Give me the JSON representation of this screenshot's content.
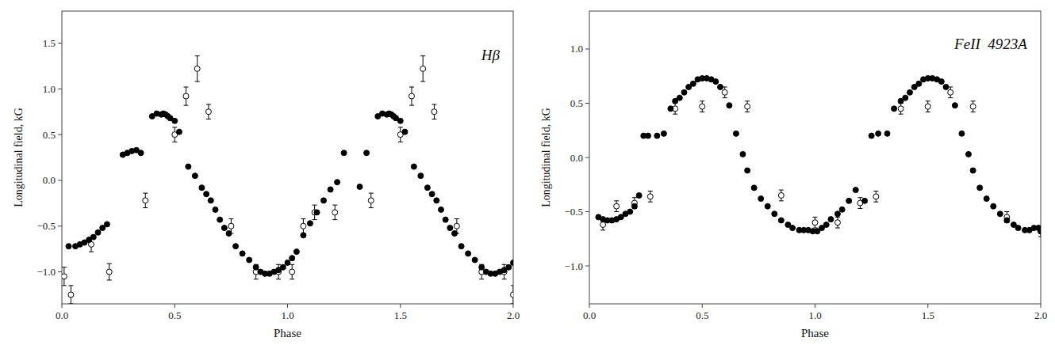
{
  "chart_data": [
    {
      "type": "scatter",
      "annotations": [
        "Hβ"
      ],
      "x_label": "Phase",
      "y_label": "Longitudinal field, kG",
      "xlim": [
        0,
        2
      ],
      "ylim": [
        -1.35,
        1.85
      ],
      "xticks": [
        {
          "value": 0,
          "label": "0.0"
        },
        {
          "value": 0.5,
          "label": "0.5"
        },
        {
          "value": 1,
          "label": "1.0"
        },
        {
          "value": 1.5,
          "label": "1.5"
        },
        {
          "value": 2,
          "label": "2.0"
        }
      ],
      "yticks": [
        {
          "value": -1,
          "label": "−1.0"
        },
        {
          "value": -0.5,
          "label": "−0.5"
        },
        {
          "value": 0,
          "label": "0.0"
        },
        {
          "value": 0.5,
          "label": "0.5"
        },
        {
          "value": 1,
          "label": "1.0"
        },
        {
          "value": 1.5,
          "label": "1.5"
        }
      ],
      "grid": false,
      "series": [
        {
          "marker": "circle",
          "color": "#000000",
          "x": [
            0.03,
            0.06,
            0.08,
            0.1,
            0.12,
            0.14,
            0.16,
            0.18,
            0.2,
            0.27,
            0.29,
            0.31,
            0.33,
            0.35,
            0.4,
            0.42,
            0.44,
            0.45,
            0.46,
            0.47,
            0.48,
            0.5,
            0.52,
            0.56,
            0.59,
            0.62,
            0.64,
            0.66,
            0.68,
            0.7,
            0.72,
            0.74,
            0.77,
            0.8,
            0.83,
            0.86,
            0.88,
            0.9,
            0.92,
            0.94,
            0.96,
            0.98,
            1.0,
            1.02,
            1.04,
            1.07,
            1.1,
            1.13,
            1.16,
            1.19,
            1.22,
            1.25,
            1.32,
            1.35,
            1.4,
            1.42,
            1.44,
            1.45,
            1.46,
            1.47,
            1.48,
            1.5,
            1.52,
            1.56,
            1.59,
            1.62,
            1.64,
            1.66,
            1.68,
            1.7,
            1.72,
            1.74,
            1.77,
            1.8,
            1.83,
            1.86,
            1.88,
            1.9,
            1.92,
            1.94,
            1.96,
            1.98,
            2.0
          ],
          "values": [
            -0.72,
            -0.72,
            -0.7,
            -0.68,
            -0.65,
            -0.62,
            -0.57,
            -0.52,
            -0.48,
            0.28,
            0.3,
            0.32,
            0.33,
            0.3,
            0.7,
            0.73,
            0.72,
            0.73,
            0.72,
            0.7,
            0.68,
            0.65,
            0.53,
            0.15,
            0.05,
            -0.08,
            -0.15,
            -0.22,
            -0.32,
            -0.43,
            -0.52,
            -0.58,
            -0.72,
            -0.8,
            -0.87,
            -0.95,
            -1.0,
            -1.02,
            -1.02,
            -1.0,
            -0.98,
            -0.95,
            -0.9,
            -0.85,
            -0.78,
            -0.6,
            -0.47,
            -0.35,
            -0.22,
            -0.1,
            -0.02,
            0.3,
            -0.07,
            0.3,
            0.7,
            0.73,
            0.72,
            0.73,
            0.72,
            0.7,
            0.68,
            0.65,
            0.53,
            0.15,
            0.05,
            -0.08,
            -0.15,
            -0.22,
            -0.32,
            -0.43,
            -0.52,
            -0.58,
            -0.72,
            -0.8,
            -0.87,
            -0.95,
            -1.0,
            -1.02,
            -1.02,
            -1.0,
            -0.98,
            -0.95,
            -0.9
          ]
        },
        {
          "marker": "circle-open",
          "color": "#000000",
          "x": [
            0.01,
            0.04,
            0.13,
            0.21,
            0.37,
            0.5,
            0.55,
            0.6,
            0.65,
            0.75,
            0.86,
            0.96,
            1.02,
            1.07,
            1.12,
            1.21,
            1.37,
            1.5,
            1.55,
            1.6,
            1.65,
            1.75,
            1.86,
            1.96,
            2.0
          ],
          "values": [
            -1.05,
            -1.25,
            -0.7,
            -1.0,
            -0.22,
            0.5,
            0.92,
            1.22,
            0.75,
            -0.5,
            -1.0,
            -1.0,
            -1.0,
            -0.5,
            -0.35,
            -0.35,
            -0.22,
            0.5,
            0.92,
            1.22,
            0.75,
            -0.5,
            -1.0,
            -1.0,
            -1.25
          ],
          "errors": [
            0.1,
            0.1,
            0.08,
            0.09,
            0.08,
            0.08,
            0.1,
            0.14,
            0.08,
            0.08,
            0.08,
            0.08,
            0.08,
            0.08,
            0.08,
            0.08,
            0.08,
            0.08,
            0.1,
            0.14,
            0.08,
            0.08,
            0.08,
            0.08,
            0.1
          ]
        }
      ]
    },
    {
      "type": "scatter",
      "annotations": [
        "FeII  4923A"
      ],
      "x_label": "Phase",
      "y_label": "Longitudinal field, kG",
      "xlim": [
        0,
        2
      ],
      "ylim": [
        -1.35,
        1.35
      ],
      "xticks": [
        {
          "value": 0,
          "label": "0.0"
        },
        {
          "value": 0.5,
          "label": "0.5"
        },
        {
          "value": 1,
          "label": "1.0"
        },
        {
          "value": 1.5,
          "label": "1.5"
        },
        {
          "value": 2,
          "label": "2.0"
        }
      ],
      "yticks": [
        {
          "value": -1,
          "label": "−1.0"
        },
        {
          "value": -0.5,
          "label": "−0.5"
        },
        {
          "value": 0,
          "label": "0.0"
        },
        {
          "value": 0.5,
          "label": "0.5"
        },
        {
          "value": 1,
          "label": "1.0"
        }
      ],
      "grid": false,
      "series": [
        {
          "marker": "circle",
          "color": "#000000",
          "x": [
            0.04,
            0.06,
            0.08,
            0.1,
            0.12,
            0.14,
            0.16,
            0.18,
            0.2,
            0.22,
            0.24,
            0.26,
            0.3,
            0.33,
            0.36,
            0.38,
            0.4,
            0.42,
            0.44,
            0.46,
            0.48,
            0.5,
            0.52,
            0.54,
            0.56,
            0.58,
            0.62,
            0.65,
            0.68,
            0.7,
            0.73,
            0.76,
            0.79,
            0.82,
            0.85,
            0.88,
            0.9,
            0.93,
            0.95,
            0.97,
            0.99,
            1.01,
            1.03,
            1.05,
            1.07,
            1.1,
            1.12,
            1.15,
            1.18,
            1.22,
            1.25,
            1.28,
            1.32,
            1.35,
            1.38,
            1.4,
            1.42,
            1.44,
            1.46,
            1.48,
            1.5,
            1.52,
            1.54,
            1.56,
            1.58,
            1.62,
            1.65,
            1.68,
            1.7,
            1.73,
            1.76,
            1.79,
            1.82,
            1.85,
            1.88,
            1.9,
            1.93,
            1.95,
            1.97,
            1.99,
            2.0
          ],
          "values": [
            -0.55,
            -0.57,
            -0.58,
            -0.58,
            -0.57,
            -0.55,
            -0.52,
            -0.5,
            -0.45,
            -0.35,
            0.2,
            0.2,
            0.2,
            0.22,
            0.45,
            0.52,
            0.55,
            0.6,
            0.65,
            0.68,
            0.72,
            0.73,
            0.73,
            0.72,
            0.7,
            0.65,
            0.48,
            0.22,
            0.03,
            -0.12,
            -0.28,
            -0.38,
            -0.45,
            -0.52,
            -0.58,
            -0.62,
            -0.65,
            -0.67,
            -0.67,
            -0.67,
            -0.68,
            -0.68,
            -0.65,
            -0.62,
            -0.57,
            -0.52,
            -0.48,
            -0.4,
            -0.3,
            -0.4,
            0.2,
            0.22,
            0.22,
            0.45,
            0.52,
            0.55,
            0.6,
            0.65,
            0.68,
            0.72,
            0.73,
            0.73,
            0.72,
            0.7,
            0.65,
            0.48,
            0.22,
            0.03,
            -0.12,
            -0.28,
            -0.38,
            -0.45,
            -0.52,
            -0.58,
            -0.62,
            -0.65,
            -0.67,
            -0.67,
            -0.65,
            -0.65,
            -0.68
          ]
        },
        {
          "marker": "circle-open",
          "color": "#000000",
          "x": [
            0.06,
            0.12,
            0.2,
            0.27,
            0.38,
            0.5,
            0.6,
            0.7,
            0.85,
            1.0,
            1.1,
            1.2,
            1.27,
            1.38,
            1.5,
            1.6,
            1.7,
            1.85,
            2.0
          ],
          "values": [
            -0.62,
            -0.45,
            -0.42,
            -0.36,
            0.45,
            0.47,
            0.6,
            0.47,
            -0.35,
            -0.6,
            -0.6,
            -0.42,
            -0.36,
            0.45,
            0.47,
            0.6,
            0.47,
            -0.55,
            -0.68
          ],
          "errors": [
            0.05,
            0.05,
            0.05,
            0.05,
            0.05,
            0.05,
            0.05,
            0.05,
            0.05,
            0.05,
            0.05,
            0.05,
            0.05,
            0.05,
            0.05,
            0.05,
            0.05,
            0.05,
            0.05
          ]
        }
      ]
    }
  ]
}
